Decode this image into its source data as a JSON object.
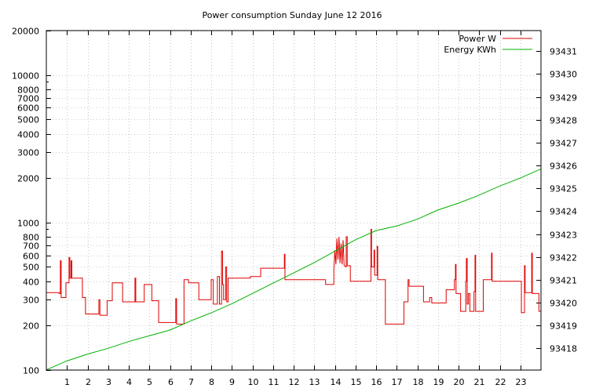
{
  "chart_data": {
    "type": "line",
    "title": "Power consumption Sunday June 12 2016",
    "xlabel": "",
    "ylabel": "",
    "y2label": "",
    "grid": true,
    "legend_position": "top-right",
    "x_range": [
      0,
      24
    ],
    "x_ticks": [
      1,
      2,
      3,
      4,
      5,
      6,
      7,
      8,
      9,
      10,
      11,
      12,
      13,
      14,
      15,
      16,
      17,
      18,
      19,
      20,
      21,
      22,
      23
    ],
    "y_scale": "log",
    "y_range": [
      100,
      20000
    ],
    "y_ticks": [
      100,
      200,
      300,
      400,
      500,
      600,
      700,
      800,
      1000,
      2000,
      3000,
      4000,
      5000,
      6000,
      7000,
      8000,
      10000,
      20000
    ],
    "y2_range": [
      93417.05,
      93431.9
    ],
    "y2_ticks": [
      93418,
      93419,
      93420,
      93421,
      93422,
      93423,
      93424,
      93425,
      93426,
      93427,
      93428,
      93429,
      93430,
      93431
    ],
    "series": [
      {
        "name": "Power W",
        "color": "#e00000",
        "axis": "left",
        "points": [
          [
            0.0,
            335
          ],
          [
            0.62,
            335
          ],
          [
            0.62,
            330
          ],
          [
            0.68,
            330
          ],
          [
            0.68,
            550
          ],
          [
            0.72,
            550
          ],
          [
            0.72,
            310
          ],
          [
            0.95,
            310
          ],
          [
            0.95,
            390
          ],
          [
            1.1,
            390
          ],
          [
            1.1,
            580
          ],
          [
            1.14,
            580
          ],
          [
            1.14,
            420
          ],
          [
            1.2,
            420
          ],
          [
            1.2,
            550
          ],
          [
            1.24,
            550
          ],
          [
            1.24,
            420
          ],
          [
            1.75,
            420
          ],
          [
            1.75,
            310
          ],
          [
            1.9,
            310
          ],
          [
            1.9,
            240
          ],
          [
            2.55,
            240
          ],
          [
            2.55,
            300
          ],
          [
            2.6,
            300
          ],
          [
            2.6,
            235
          ],
          [
            2.95,
            235
          ],
          [
            2.95,
            295
          ],
          [
            3.2,
            295
          ],
          [
            3.2,
            390
          ],
          [
            3.7,
            390
          ],
          [
            3.7,
            290
          ],
          [
            4.3,
            290
          ],
          [
            4.3,
            420
          ],
          [
            4.34,
            420
          ],
          [
            4.34,
            290
          ],
          [
            4.75,
            290
          ],
          [
            4.75,
            380
          ],
          [
            5.12,
            380
          ],
          [
            5.12,
            295
          ],
          [
            5.45,
            295
          ],
          [
            5.45,
            210
          ],
          [
            6.28,
            210
          ],
          [
            6.28,
            305
          ],
          [
            6.32,
            305
          ],
          [
            6.32,
            205
          ],
          [
            6.68,
            205
          ],
          [
            6.68,
            410
          ],
          [
            6.9,
            410
          ],
          [
            6.9,
            390
          ],
          [
            7.4,
            390
          ],
          [
            7.4,
            300
          ],
          [
            8.0,
            300
          ],
          [
            8.0,
            410
          ],
          [
            8.1,
            410
          ],
          [
            8.1,
            280
          ],
          [
            8.3,
            280
          ],
          [
            8.3,
            430
          ],
          [
            8.4,
            430
          ],
          [
            8.4,
            280
          ],
          [
            8.5,
            280
          ],
          [
            8.5,
            640
          ],
          [
            8.55,
            640
          ],
          [
            8.55,
            380
          ],
          [
            8.6,
            380
          ],
          [
            8.6,
            300
          ],
          [
            8.7,
            300
          ],
          [
            8.7,
            500
          ],
          [
            8.75,
            500
          ],
          [
            8.75,
            290
          ],
          [
            8.82,
            290
          ],
          [
            8.82,
            420
          ],
          [
            9.9,
            420
          ],
          [
            9.9,
            430
          ],
          [
            10.4,
            430
          ],
          [
            10.4,
            490
          ],
          [
            11.55,
            490
          ],
          [
            11.55,
            610
          ],
          [
            11.58,
            610
          ],
          [
            11.58,
            410
          ],
          [
            13.55,
            410
          ],
          [
            13.55,
            380
          ],
          [
            13.95,
            380
          ],
          [
            13.95,
            480
          ],
          [
            14.0,
            650
          ],
          [
            14.05,
            520
          ],
          [
            14.1,
            780
          ],
          [
            14.15,
            560
          ],
          [
            14.2,
            800
          ],
          [
            14.25,
            530
          ],
          [
            14.3,
            720
          ],
          [
            14.35,
            520
          ],
          [
            14.4,
            760
          ],
          [
            14.45,
            510
          ],
          [
            14.55,
            500
          ],
          [
            14.55,
            800
          ],
          [
            14.6,
            800
          ],
          [
            14.6,
            510
          ],
          [
            14.75,
            510
          ],
          [
            14.75,
            400
          ],
          [
            15.75,
            400
          ],
          [
            15.75,
            900
          ],
          [
            15.78,
            900
          ],
          [
            15.78,
            500
          ],
          [
            15.9,
            500
          ],
          [
            15.9,
            650
          ],
          [
            15.93,
            650
          ],
          [
            15.93,
            440
          ],
          [
            16.05,
            440
          ],
          [
            16.05,
            690
          ],
          [
            16.08,
            690
          ],
          [
            16.08,
            410
          ],
          [
            16.45,
            410
          ],
          [
            16.45,
            205
          ],
          [
            17.35,
            205
          ],
          [
            17.35,
            290
          ],
          [
            17.55,
            290
          ],
          [
            17.55,
            410
          ],
          [
            17.6,
            410
          ],
          [
            17.6,
            370
          ],
          [
            18.3,
            370
          ],
          [
            18.3,
            290
          ],
          [
            18.6,
            290
          ],
          [
            18.6,
            310
          ],
          [
            18.7,
            310
          ],
          [
            18.7,
            285
          ],
          [
            19.4,
            285
          ],
          [
            19.4,
            350
          ],
          [
            19.8,
            350
          ],
          [
            19.8,
            410
          ],
          [
            19.85,
            410
          ],
          [
            19.85,
            520
          ],
          [
            19.88,
            520
          ],
          [
            19.88,
            330
          ],
          [
            20.1,
            330
          ],
          [
            20.1,
            250
          ],
          [
            20.35,
            250
          ],
          [
            20.35,
            400
          ],
          [
            20.38,
            400
          ],
          [
            20.38,
            570
          ],
          [
            20.42,
            570
          ],
          [
            20.42,
            280
          ],
          [
            20.48,
            280
          ],
          [
            20.48,
            330
          ],
          [
            20.55,
            330
          ],
          [
            20.55,
            250
          ],
          [
            20.75,
            250
          ],
          [
            20.75,
            340
          ],
          [
            20.8,
            340
          ],
          [
            20.8,
            600
          ],
          [
            20.83,
            600
          ],
          [
            20.83,
            250
          ],
          [
            21.2,
            250
          ],
          [
            21.2,
            410
          ],
          [
            21.6,
            410
          ],
          [
            21.6,
            620
          ],
          [
            21.63,
            620
          ],
          [
            21.63,
            400
          ],
          [
            23.05,
            400
          ],
          [
            23.05,
            245
          ],
          [
            23.2,
            245
          ],
          [
            23.2,
            510
          ],
          [
            23.23,
            510
          ],
          [
            23.23,
            335
          ],
          [
            23.55,
            335
          ],
          [
            23.55,
            620
          ],
          [
            23.58,
            620
          ],
          [
            23.58,
            330
          ],
          [
            23.9,
            330
          ],
          [
            23.9,
            250
          ],
          [
            24.0,
            250
          ]
        ]
      },
      {
        "name": "Energy KWh",
        "color": "#00b000",
        "axis": "right",
        "points": [
          [
            0.0,
            93417.06
          ],
          [
            1.0,
            93417.45
          ],
          [
            2.0,
            93417.75
          ],
          [
            3.0,
            93418.0
          ],
          [
            4.0,
            93418.3
          ],
          [
            5.0,
            93418.55
          ],
          [
            6.0,
            93418.8
          ],
          [
            7.0,
            93419.2
          ],
          [
            8.0,
            93419.55
          ],
          [
            9.0,
            93419.95
          ],
          [
            10.0,
            93420.4
          ],
          [
            11.0,
            93420.85
          ],
          [
            12.0,
            93421.3
          ],
          [
            13.0,
            93421.75
          ],
          [
            14.0,
            93422.25
          ],
          [
            15.0,
            93422.75
          ],
          [
            16.0,
            93423.15
          ],
          [
            17.0,
            93423.35
          ],
          [
            18.0,
            93423.65
          ],
          [
            19.0,
            93424.05
          ],
          [
            20.0,
            93424.35
          ],
          [
            21.0,
            93424.7
          ],
          [
            22.0,
            93425.1
          ],
          [
            23.0,
            93425.45
          ],
          [
            24.0,
            93425.85
          ]
        ]
      }
    ]
  }
}
